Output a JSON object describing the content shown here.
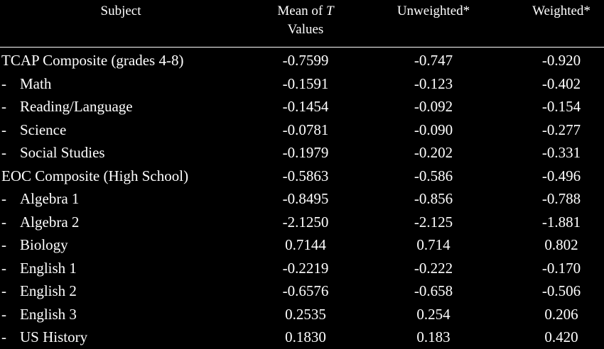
{
  "table": {
    "headers": {
      "subject": "Subject",
      "mean_line1": "Mean of",
      "mean_t": "T",
      "mean_line2": "Values",
      "unweighted": "Unweighted*",
      "weighted": "Weighted*"
    },
    "rows": [
      {
        "dash": "",
        "subject": "TCAP Composite (grades 4-8)",
        "mean": "-0.7599",
        "unweighted": "-0.747",
        "weighted": "-0.920"
      },
      {
        "dash": "-",
        "subject": "Math",
        "mean": "-0.1591",
        "unweighted": "-0.123",
        "weighted": "-0.402"
      },
      {
        "dash": "-",
        "subject": "Reading/Language",
        "mean": "-0.1454",
        "unweighted": "-0.092",
        "weighted": "-0.154"
      },
      {
        "dash": "-",
        "subject": "Science",
        "mean": "-0.0781",
        "unweighted": "-0.090",
        "weighted": "-0.277"
      },
      {
        "dash": "-",
        "subject": "Social Studies",
        "mean": "-0.1979",
        "unweighted": "-0.202",
        "weighted": "-0.331"
      },
      {
        "dash": "",
        "subject": "EOC Composite (High School)",
        "mean": "-0.5863",
        "unweighted": "-0.586",
        "weighted": "-0.496"
      },
      {
        "dash": "-",
        "subject": "Algebra 1",
        "mean": "-0.8495",
        "unweighted": "-0.856",
        "weighted": "-0.788"
      },
      {
        "dash": "-",
        "subject": "Algebra 2",
        "mean": "-2.1250",
        "unweighted": "-2.125",
        "weighted": "-1.881"
      },
      {
        "dash": "-",
        "subject": "Biology",
        "mean": "0.7144",
        "unweighted": "0.714",
        "weighted": "0.802"
      },
      {
        "dash": "-",
        "subject": "English 1",
        "mean": "-0.2219",
        "unweighted": "-0.222",
        "weighted": "-0.170"
      },
      {
        "dash": "-",
        "subject": "English 2",
        "mean": "-0.6576",
        "unweighted": "-0.658",
        "weighted": "-0.506"
      },
      {
        "dash": "-",
        "subject": "English 3",
        "mean": "0.2535",
        "unweighted": "0.254",
        "weighted": "0.206"
      },
      {
        "dash": "-",
        "subject": "US History",
        "mean": "0.1830",
        "unweighted": "0.183",
        "weighted": "0.420"
      }
    ]
  }
}
